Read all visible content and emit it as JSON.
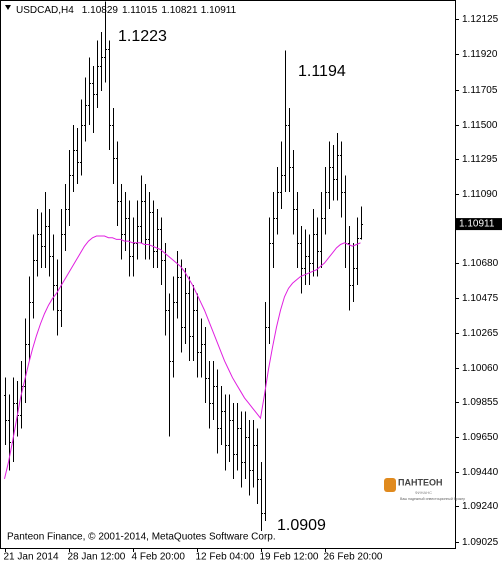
{
  "chart_data": {
    "type": "ohlc",
    "symbol": "USDCAD,H4",
    "footer": "Panteon Finance, © 2001-2014, MetaQuotes Software Corp.",
    "logo": {
      "name": "ПАНТЕОН",
      "sub": "ФИНАНС",
      "tagline": "Ваш надежный инвестиционный брокер"
    },
    "annotations": [
      "1.1223",
      "1.1194",
      "1.0909"
    ],
    "categories": [
      "21 Jan 2014",
      null,
      null,
      null,
      null,
      null,
      null,
      null,
      null,
      null,
      null,
      null,
      null,
      null,
      null,
      null,
      "28 Jan 12:00",
      null,
      null,
      null,
      null,
      null,
      null,
      null,
      null,
      null,
      null,
      null,
      null,
      null,
      null,
      null,
      "4 Feb 20:00",
      null,
      null,
      null,
      null,
      null,
      null,
      null,
      null,
      null,
      null,
      null,
      null,
      null,
      null,
      null,
      "12 Feb 04:00",
      null,
      null,
      null,
      null,
      null,
      null,
      null,
      null,
      null,
      null,
      null,
      null,
      null,
      null,
      null,
      "19 Feb 12:00",
      null,
      null,
      null,
      null,
      null,
      null,
      null,
      null,
      null,
      null,
      null,
      null,
      null,
      null,
      null,
      "26 Feb 20:00",
      null,
      null,
      null,
      null,
      null,
      null,
      null,
      null,
      null
    ],
    "open": [
      1.099,
      1.0975,
      1.0962,
      1.0985,
      1.0978,
      1.0995,
      1.102,
      1.1045,
      1.107,
      1.1085,
      1.1078,
      1.109,
      1.1072,
      1.1055,
      1.104,
      1.1085,
      1.11,
      1.112,
      1.1135,
      1.1128,
      1.115,
      1.1162,
      1.1175,
      1.1168,
      1.1185,
      1.119,
      1.1195,
      1.115,
      1.113,
      1.1105,
      1.1085,
      1.1095,
      1.1072,
      1.108,
      1.109,
      1.1105,
      1.1082,
      1.1098,
      1.1075,
      1.1088,
      1.107,
      1.104,
      1.101,
      1.1045,
      1.106,
      1.103,
      1.105,
      1.1025,
      1.104,
      1.1015,
      1.102,
      1.1,
      1.0985,
      1.0995,
      1.097,
      1.098,
      1.096,
      1.0975,
      1.0955,
      1.097,
      1.095,
      1.0965,
      1.0945,
      1.096,
      1.094,
      1.092,
      1.103,
      1.108,
      1.1095,
      1.111,
      1.112,
      1.115,
      1.1125,
      1.11,
      1.108,
      1.1065,
      1.1072,
      1.1068,
      1.1085,
      1.1075,
      1.1095,
      1.111,
      1.1125,
      1.1118,
      1.1132,
      1.111,
      1.108,
      1.1055,
      1.1065,
      1.10829
    ],
    "high": [
      1.1,
      1.099,
      1.1,
      1.0998,
      1.101,
      1.1035,
      1.106,
      1.1085,
      1.11,
      1.1098,
      1.111,
      1.11,
      1.1085,
      1.107,
      1.11,
      1.1115,
      1.1135,
      1.115,
      1.1148,
      1.1165,
      1.1178,
      1.119,
      1.1185,
      1.12,
      1.1205,
      1.1223,
      1.12,
      1.116,
      1.114,
      1.1115,
      1.111,
      1.1105,
      1.1095,
      1.1105,
      1.112,
      1.1115,
      1.111,
      1.1105,
      1.11,
      1.1095,
      1.108,
      1.105,
      1.106,
      1.1075,
      1.107,
      1.1065,
      1.106,
      1.1055,
      1.105,
      1.1035,
      1.103,
      1.101,
      1.101,
      1.1005,
      1.0995,
      1.099,
      1.099,
      1.0985,
      1.0985,
      1.098,
      1.098,
      1.0975,
      1.0975,
      1.097,
      1.095,
      1.1045,
      1.1095,
      1.111,
      1.1125,
      1.114,
      1.1194,
      1.116,
      1.1135,
      1.111,
      1.109,
      1.1088,
      1.1085,
      1.11,
      1.1095,
      1.111,
      1.1125,
      1.114,
      1.1138,
      1.1145,
      1.114,
      1.112,
      1.109,
      1.108,
      1.1095,
      1.11015
    ],
    "low": [
      1.096,
      1.0945,
      1.095,
      1.0965,
      1.097,
      1.0985,
      1.101,
      1.1035,
      1.106,
      1.1065,
      1.1065,
      1.106,
      1.104,
      1.1025,
      1.103,
      1.1075,
      1.109,
      1.111,
      1.1115,
      1.112,
      1.114,
      1.115,
      1.1145,
      1.116,
      1.117,
      1.1175,
      1.1135,
      1.1115,
      1.109,
      1.107,
      1.1075,
      1.106,
      1.106,
      1.107,
      1.108,
      1.107,
      1.107,
      1.1065,
      1.1065,
      1.1055,
      1.1025,
      1.0965,
      1.1,
      1.1035,
      1.1015,
      1.102,
      1.101,
      1.101,
      1.1,
      1.1,
      1.0985,
      1.097,
      1.0975,
      1.0955,
      1.096,
      1.0945,
      1.095,
      1.094,
      1.0945,
      1.0935,
      1.094,
      1.093,
      1.0935,
      1.0925,
      1.0909,
      1.0915,
      1.102,
      1.1065,
      1.1085,
      1.11,
      1.111,
      1.111,
      1.1085,
      1.1065,
      1.105,
      1.1055,
      1.1055,
      1.106,
      1.106,
      1.1065,
      1.1085,
      1.11,
      1.1105,
      1.1105,
      1.1095,
      1.1065,
      1.104,
      1.1045,
      1.1055,
      1.10821
    ],
    "close": [
      1.0975,
      1.0962,
      1.0985,
      1.0978,
      1.0995,
      1.102,
      1.1045,
      1.107,
      1.1085,
      1.1078,
      1.109,
      1.1072,
      1.1055,
      1.104,
      1.1085,
      1.11,
      1.112,
      1.1135,
      1.1128,
      1.115,
      1.1162,
      1.1175,
      1.1168,
      1.1185,
      1.119,
      1.1195,
      1.115,
      1.113,
      1.1105,
      1.1085,
      1.1095,
      1.1072,
      1.108,
      1.109,
      1.1105,
      1.1082,
      1.1098,
      1.1075,
      1.1088,
      1.107,
      1.104,
      1.101,
      1.1045,
      1.106,
      1.103,
      1.105,
      1.1025,
      1.104,
      1.1015,
      1.102,
      1.1,
      1.0985,
      1.0995,
      1.097,
      1.098,
      1.096,
      1.0975,
      1.0955,
      1.097,
      1.095,
      1.0965,
      1.0945,
      1.096,
      1.094,
      1.092,
      1.103,
      1.108,
      1.1095,
      1.111,
      1.112,
      1.115,
      1.1125,
      1.11,
      1.108,
      1.1065,
      1.1072,
      1.1068,
      1.1085,
      1.1075,
      1.1095,
      1.111,
      1.1125,
      1.1118,
      1.1132,
      1.111,
      1.108,
      1.1055,
      1.1065,
      1.10829,
      1.10911
    ],
    "bar_color": "#000000",
    "ma": {
      "color": "#e020e0",
      "values": [
        1.094,
        1.095,
        1.0962,
        1.0975,
        1.0988,
        1.0998,
        1.1008,
        1.1017,
        1.1025,
        1.1032,
        1.1038,
        1.1043,
        1.1047,
        1.105,
        1.1054,
        1.1058,
        1.1062,
        1.1066,
        1.107,
        1.1074,
        1.1078,
        1.1081,
        1.1083,
        1.1084,
        1.1084,
        1.1084,
        1.1083,
        1.1083,
        1.1082,
        1.1082,
        1.1081,
        1.1081,
        1.108,
        1.108,
        1.108,
        1.1079,
        1.1079,
        1.1078,
        1.1077,
        1.1076,
        1.1074,
        1.1072,
        1.107,
        1.1068,
        1.1066,
        1.1063,
        1.1059,
        1.1055,
        1.105,
        1.1045,
        1.104,
        1.1034,
        1.1028,
        1.1022,
        1.1016,
        1.101,
        1.1005,
        1.1,
        1.0996,
        1.0992,
        1.0988,
        1.0985,
        1.0982,
        1.0979,
        1.0976,
        1.099,
        1.1005,
        1.1018,
        1.103,
        1.104,
        1.1048,
        1.1053,
        1.1056,
        1.1058,
        1.106,
        1.1061,
        1.1062,
        1.1063,
        1.1064,
        1.1066,
        1.1068,
        1.1071,
        1.1074,
        1.1077,
        1.1079,
        1.108,
        1.1079,
        1.1078,
        1.1079,
        1.108
      ]
    },
    "ylim": [
      1.0899,
      1.1224
    ],
    "yticks": [
      1.12125,
      {
        "value": 1.1192,
        "label": "1.11920"
      },
      1.11705,
      {
        "value": 1.115,
        "label": "1.11500"
      },
      1.11295,
      {
        "value": 1.1109,
        "label": "1.11090"
      },
      {
        "value": 1.1068,
        "label": "1.10680"
      },
      1.10475,
      1.10265,
      {
        "value": 1.1006,
        "label": "1.10060"
      },
      1.09855,
      {
        "value": 1.0965,
        "label": "1.09650"
      },
      {
        "value": 1.0944,
        "label": "1.09440"
      },
      {
        "value": 1.0924,
        "label": "1.09240"
      },
      1.09025
    ],
    "grid": false
  }
}
